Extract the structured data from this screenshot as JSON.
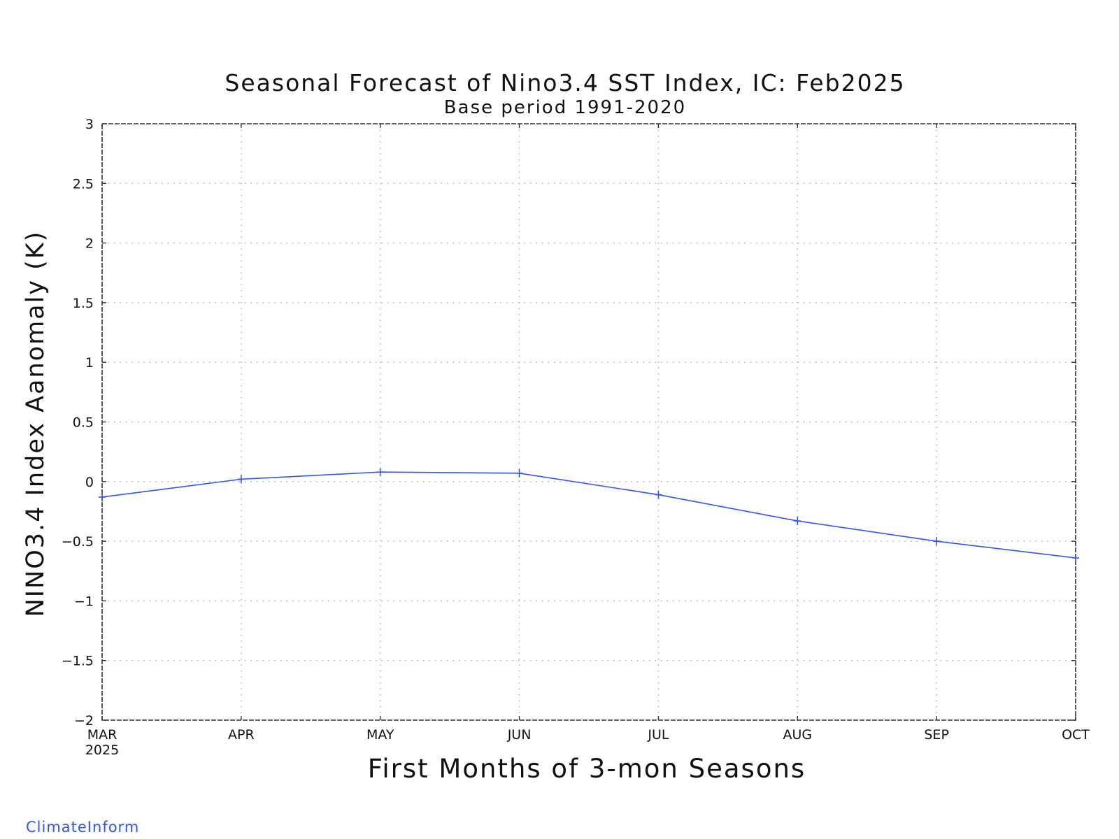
{
  "chart_data": {
    "type": "line",
    "title": "Seasonal Forecast of Nino3.4 SST Index, IC: Feb2025",
    "subtitle": "Base period 1991-2020",
    "xlabel": "First Months of 3-mon Seasons",
    "ylabel": "NINO3.4 Index Aanomaly (K)",
    "categories": [
      "MAR",
      "APR",
      "MAY",
      "JUN",
      "JUL",
      "AUG",
      "SEP",
      "OCT"
    ],
    "x_year_label": "2025",
    "series": [
      {
        "values": [
          -0.13,
          0.02,
          0.08,
          0.07,
          -0.11,
          -0.33,
          -0.5,
          -0.64
        ],
        "color": "#3355ee"
      }
    ],
    "ylim": [
      -2,
      3
    ],
    "yticks": [
      3,
      2.5,
      2,
      1.5,
      1,
      0.5,
      0,
      -0.5,
      -1,
      -1.5,
      -2
    ],
    "ytick_labels": [
      "3",
      "2.5",
      "2",
      "1.5",
      "1",
      "0.5",
      "0",
      "-0.5",
      "-1",
      "-1.5",
      "-2"
    ],
    "grid": true,
    "grid_style": "dotted"
  },
  "credit": {
    "text": "ClimateInform",
    "color": "#3355ee"
  }
}
